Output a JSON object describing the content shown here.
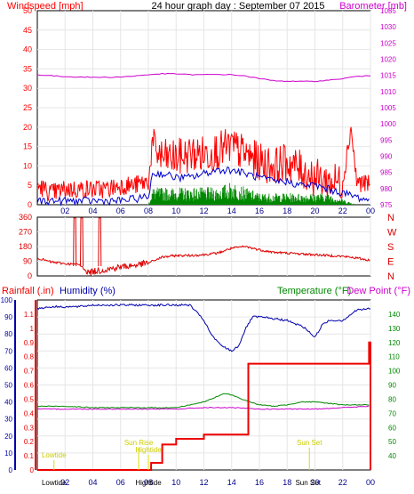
{
  "header": {
    "left_label": "Windspeed [mph]",
    "title": "24 hour graph day : September 07 2015",
    "right_label": "Barometer [mb]"
  },
  "panel3_header": {
    "rainfall_label": "Rainfall (.in)",
    "humidity_label": "Humidity (%)",
    "temperature_label": "Temperature (°F)",
    "dewpoint_label": "Dew Point (°F)"
  },
  "colors": {
    "wind_gust": "#ff0000",
    "wind_avg": "#0000cc",
    "wind_low": "#008800",
    "barometer": "#cc00cc",
    "direction": "#dd0000",
    "rain": "#ee0000",
    "humidity": "#0000aa",
    "temperature": "#008800",
    "dewpoint": "#cc00cc",
    "annotation": "#dddd00"
  },
  "chart_data": [
    {
      "type": "line",
      "panel": "wind-barometer",
      "x_ticks": [
        "02",
        "04",
        "06",
        "08",
        "10",
        "12",
        "14",
        "16",
        "18",
        "20",
        "22",
        "00"
      ],
      "xlim_hours": [
        0,
        24
      ],
      "y_left": {
        "label": "Windspeed [mph]",
        "ylim": [
          0,
          50
        ],
        "ticks": [
          "0",
          "5",
          "10",
          "15",
          "20",
          "25",
          "30",
          "35",
          "40",
          "45",
          "50"
        ]
      },
      "y_right": {
        "label": "Barometer [mb]",
        "ylim": [
          975,
          1035
        ],
        "ticks": [
          "975",
          "980",
          "985",
          "990",
          "995",
          "1000",
          "1005",
          "1010",
          "1015",
          "1020",
          "1025",
          "1030",
          "1035"
        ]
      },
      "series": [
        {
          "key": "gust",
          "hours": [
            0,
            1,
            2,
            3,
            4,
            5,
            6,
            7,
            8,
            8.3,
            9,
            10,
            11,
            12,
            13,
            14,
            15,
            16,
            17,
            18,
            19,
            20,
            21,
            22,
            22.6,
            23,
            24
          ],
          "values": [
            5,
            3,
            4,
            4,
            4,
            4,
            5,
            5,
            6,
            15,
            12,
            12,
            13,
            13,
            14,
            15,
            13,
            11,
            10,
            11,
            9,
            7,
            6,
            6,
            20,
            6,
            5
          ]
        },
        {
          "key": "average",
          "hours": [
            0,
            2,
            4,
            6,
            8,
            8.3,
            9,
            10,
            11,
            12,
            13,
            14,
            15,
            16,
            17,
            18,
            19,
            20,
            21,
            22,
            23,
            24
          ],
          "values": [
            1,
            1,
            1,
            1,
            2,
            8,
            8,
            7,
            7,
            8,
            9,
            9,
            8,
            7,
            6,
            6,
            5,
            5,
            4,
            3,
            2,
            1
          ]
        },
        {
          "key": "low",
          "hours": [
            0,
            2,
            4,
            6,
            8,
            8.3,
            9,
            10,
            11,
            12,
            13,
            14,
            15,
            16,
            17,
            18,
            19,
            20,
            21,
            22,
            23,
            24
          ],
          "values": [
            0,
            0,
            0,
            0,
            0,
            3,
            3,
            3,
            3,
            3,
            3,
            4,
            3,
            2,
            2,
            2,
            2,
            2,
            2,
            1,
            0,
            0
          ]
        },
        {
          "key": "barometer",
          "axis": "right",
          "hours": [
            0,
            1,
            2,
            3,
            4,
            5,
            6,
            7,
            8,
            9,
            10,
            11,
            12,
            13,
            14,
            15,
            16,
            17,
            18,
            19,
            20,
            21,
            22,
            23,
            24
          ],
          "values": [
            1015.2,
            1014.9,
            1014.6,
            1014.5,
            1014.4,
            1014.4,
            1014.5,
            1014.8,
            1015.2,
            1015.5,
            1015.5,
            1015.2,
            1015.2,
            1015.3,
            1015.2,
            1014.8,
            1014.0,
            1013.4,
            1013.2,
            1013.1,
            1013.2,
            1013.5,
            1014.0,
            1014.7,
            1014.8
          ]
        }
      ]
    },
    {
      "type": "line",
      "panel": "wind-direction",
      "y_left": {
        "ylim": [
          0,
          360
        ],
        "ticks": [
          "0",
          "90",
          "180",
          "270",
          "360"
        ]
      },
      "y_right": {
        "labels": [
          "N",
          "W",
          "S",
          "E",
          "N"
        ]
      },
      "series": [
        {
          "key": "direction",
          "hours": [
            0,
            1,
            2,
            3,
            3.7,
            4.2,
            5,
            6,
            7,
            8,
            9,
            10,
            11,
            12,
            13,
            14,
            15,
            16,
            17,
            18,
            19,
            20,
            21,
            22,
            23,
            24
          ],
          "values": [
            110,
            85,
            75,
            70,
            20,
            30,
            40,
            55,
            65,
            80,
            115,
            125,
            125,
            130,
            140,
            170,
            180,
            160,
            145,
            140,
            135,
            130,
            125,
            120,
            110,
            95
          ]
        },
        {
          "key": "direction-spikes",
          "hours": [
            2.7,
            3.2,
            4.5
          ],
          "values": [
            355,
            355,
            355
          ]
        }
      ]
    },
    {
      "type": "line",
      "panel": "rain-humidity-temperature",
      "y_rain": {
        "label": "Rainfall (.in)",
        "ylim": [
          0,
          1.2
        ],
        "ticks": [
          "0",
          "0.1",
          "0.2",
          "0.3",
          "0.4",
          "0.5",
          "0.6",
          "0.7",
          "0.8",
          "0.9",
          "1",
          "1.1"
        ]
      },
      "y_humidity": {
        "label": "Humidity (%)",
        "ylim": [
          0,
          100
        ],
        "ticks": [
          "0",
          "10",
          "20",
          "30",
          "40",
          "50",
          "60",
          "70",
          "80",
          "90",
          "100"
        ]
      },
      "y_temperature": {
        "label": "Temperature (°F)",
        "ylim": [
          30,
          150
        ],
        "ticks": [
          "40",
          "50",
          "60",
          "70",
          "80",
          "90",
          "100",
          "110",
          "120",
          "130",
          "140"
        ]
      },
      "series": [
        {
          "key": "rain",
          "hours": [
            0,
            6.5,
            7.8,
            8.2,
            9,
            10,
            11,
            12,
            13,
            14,
            15,
            15.2,
            23,
            23.9,
            24
          ],
          "values": [
            0,
            0,
            0,
            0.05,
            0.18,
            0.22,
            0.22,
            0.25,
            0.25,
            0.25,
            0.25,
            0.75,
            0.75,
            0.9,
            0
          ]
        },
        {
          "key": "humidity",
          "hours": [
            0,
            1,
            2,
            3,
            4,
            5,
            6,
            7,
            8,
            9,
            10,
            11,
            12,
            12.5,
            13,
            13.5,
            14,
            14.5,
            15,
            15.5,
            16,
            17,
            18,
            18.5,
            19,
            19.5,
            20,
            20.5,
            21,
            22,
            23,
            24
          ],
          "values": [
            95,
            96,
            96,
            96,
            97,
            97,
            97,
            97,
            97,
            97,
            97,
            97,
            88,
            80,
            75,
            72,
            70,
            73,
            83,
            90,
            90,
            89,
            88,
            86,
            85,
            82,
            78,
            85,
            88,
            88,
            94,
            95
          ]
        },
        {
          "key": "temperature",
          "hours": [
            0,
            2,
            4,
            6,
            8,
            10,
            11,
            12,
            13,
            13.5,
            14,
            15,
            16,
            17,
            18,
            19,
            20,
            21,
            22,
            23,
            24
          ],
          "values": [
            75,
            75,
            74,
            74,
            74,
            74,
            76,
            78,
            82,
            84,
            83,
            79,
            76,
            75,
            76,
            78,
            78,
            77,
            76,
            76,
            76
          ]
        },
        {
          "key": "dewpoint",
          "hours": [
            0,
            2,
            4,
            6,
            8,
            10,
            12,
            14,
            16,
            18,
            20,
            22,
            24
          ],
          "values": [
            73,
            73,
            73,
            73,
            73,
            73,
            74,
            74,
            73,
            73,
            73,
            74,
            75
          ]
        }
      ],
      "annotations": [
        {
          "text": "Lowtide",
          "hour": 1.2,
          "placement": "top"
        },
        {
          "text": "Sun Rise",
          "hour": 7.3,
          "placement": "top"
        },
        {
          "text": "Hightide",
          "hour": 8,
          "placement": "top"
        },
        {
          "text": "Sun Set",
          "hour": 19.6,
          "placement": "top"
        },
        {
          "text": "Lowtide",
          "hour": 1.2,
          "placement": "axis"
        },
        {
          "text": "Hightide",
          "hour": 8,
          "placement": "axis"
        },
        {
          "text": "Sun Set",
          "hour": 19.5,
          "placement": "axis"
        }
      ]
    }
  ]
}
